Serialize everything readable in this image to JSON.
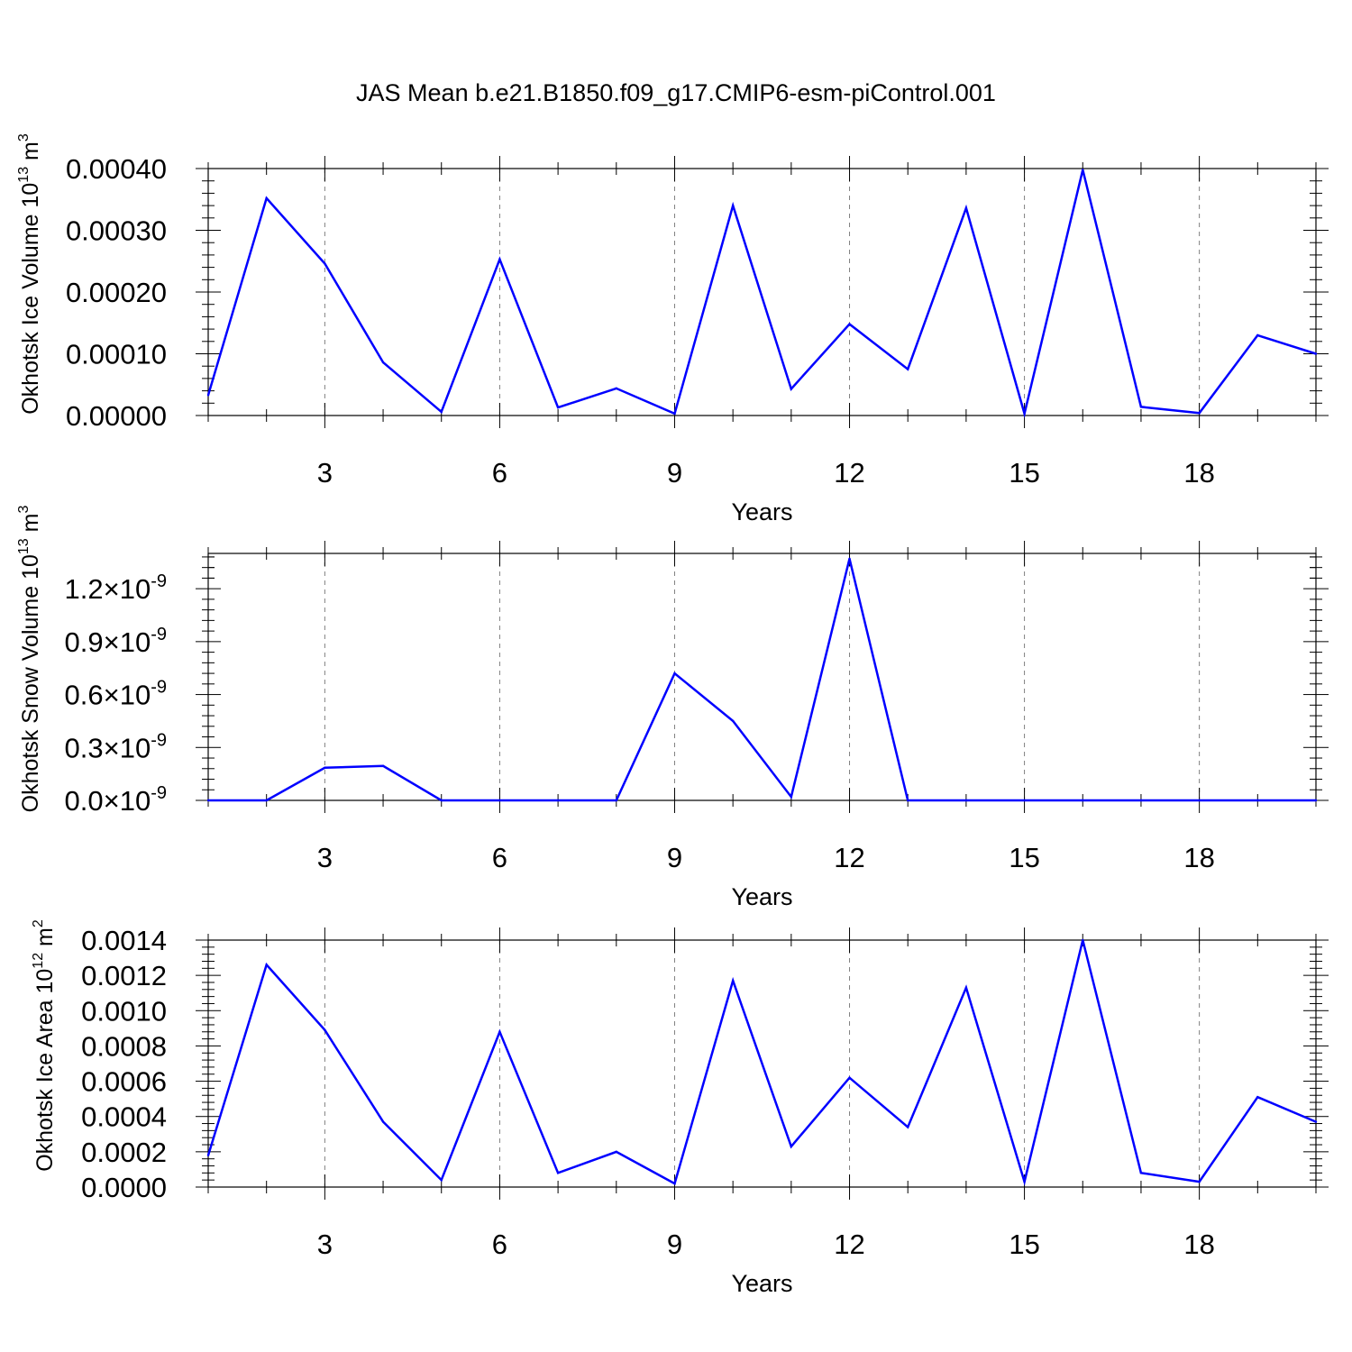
{
  "title": "JAS Mean b.e21.B1850.f09_g17.CMIP6-esm-piControl.001",
  "colors": {
    "series": "#0000ff",
    "axis": "#000000",
    "grid": "#808080"
  },
  "chart_data": [
    {
      "type": "line",
      "ylabel_main": "Okhotsk Ice Volume 10",
      "ylabel_exp": "13",
      "ylabel_unit": " m",
      "ylabel_unit_exp": "3",
      "xlabel": "Years",
      "xlim": [
        1,
        20
      ],
      "ylim": [
        0,
        0.0004
      ],
      "x_ticks": [
        3,
        6,
        9,
        12,
        15,
        18
      ],
      "x_tick_labels": [
        "3",
        "6",
        "9",
        "12",
        "15",
        "18"
      ],
      "y_ticks": [
        0,
        0.0001,
        0.0002,
        0.0003,
        0.0004
      ],
      "y_tick_labels": [
        "0.00000",
        "0.00010",
        "0.00020",
        "0.00030",
        "0.00040"
      ],
      "x_grid": "dashed vertical at major ticks",
      "x": [
        1,
        2,
        3,
        4,
        5,
        6,
        7,
        8,
        9,
        10,
        11,
        12,
        13,
        14,
        15,
        16,
        17,
        18,
        19,
        20
      ],
      "series": [
        {
          "values": [
            3.3e-05,
            0.000352,
            0.000246,
            8.6e-05,
            6e-06,
            0.000253,
            1.3e-05,
            4.4e-05,
            3e-06,
            0.00034,
            4.3e-05,
            0.000148,
            7.5e-05,
            0.000336,
            3e-06,
            0.000398,
            1.4e-05,
            4e-06,
            0.00013,
            0.0001
          ]
        }
      ]
    },
    {
      "type": "line",
      "ylabel_main": "Okhotsk Snow Volume 10",
      "ylabel_exp": "13",
      "ylabel_unit": " m",
      "ylabel_unit_exp": "3",
      "xlabel": "Years",
      "xlim": [
        1,
        20
      ],
      "ylim": [
        0,
        1.4e-09
      ],
      "x_ticks": [
        3,
        6,
        9,
        12,
        15,
        18
      ],
      "x_tick_labels": [
        "3",
        "6",
        "9",
        "12",
        "15",
        "18"
      ],
      "y_ticks": [
        0,
        3e-10,
        6e-10,
        9e-10,
        1.2e-09
      ],
      "y_tick_mantissas": [
        "0.0",
        "0.3",
        "0.6",
        "0.9",
        "1.2"
      ],
      "y_tick_times": "×10",
      "y_tick_exponent": "-9",
      "x_grid": "dashed vertical at major ticks",
      "x": [
        1,
        2,
        3,
        4,
        5,
        6,
        7,
        8,
        9,
        10,
        11,
        12,
        13,
        14,
        15,
        16,
        17,
        18,
        19,
        20
      ],
      "series": [
        {
          "values": [
            0,
            0,
            1.85e-10,
            1.95e-10,
            0,
            0,
            0,
            0,
            7.2e-10,
            4.5e-10,
            2e-11,
            1.37e-09,
            0,
            0,
            0,
            0,
            0,
            0,
            0,
            0
          ]
        }
      ]
    },
    {
      "type": "line",
      "ylabel_main": "Okhotsk Ice Area 10",
      "ylabel_exp": "12",
      "ylabel_unit": " m",
      "ylabel_unit_exp": "2",
      "xlabel": "Years",
      "xlim": [
        1,
        20
      ],
      "ylim": [
        0,
        0.0014
      ],
      "x_ticks": [
        3,
        6,
        9,
        12,
        15,
        18
      ],
      "x_tick_labels": [
        "3",
        "6",
        "9",
        "12",
        "15",
        "18"
      ],
      "y_ticks": [
        0,
        0.0002,
        0.0004,
        0.0006,
        0.0008,
        0.001,
        0.0012,
        0.0014
      ],
      "y_tick_labels": [
        "0.0000",
        "0.0002",
        "0.0004",
        "0.0006",
        "0.0008",
        "0.0010",
        "0.0012",
        "0.0014"
      ],
      "x_grid": "dashed vertical at major ticks",
      "x": [
        1,
        2,
        3,
        4,
        5,
        6,
        7,
        8,
        9,
        10,
        11,
        12,
        13,
        14,
        15,
        16,
        17,
        18,
        19,
        20
      ],
      "series": [
        {
          "values": [
            0.00018,
            0.00126,
            0.00089,
            0.00037,
            4e-05,
            0.00088,
            8e-05,
            0.0002,
            2e-05,
            0.00117,
            0.00023,
            0.00062,
            0.00034,
            0.00113,
            3e-05,
            0.0014,
            8e-05,
            3e-05,
            0.00051,
            0.00037
          ]
        }
      ]
    }
  ]
}
